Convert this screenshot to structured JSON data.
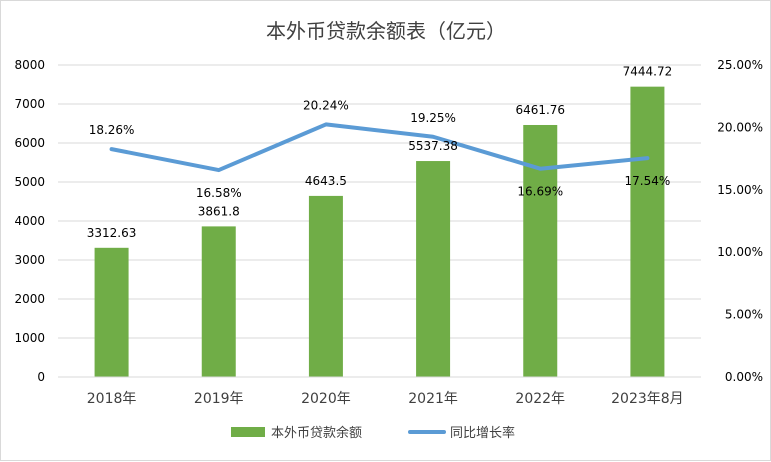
{
  "chart_data": {
    "type": "bar",
    "title": "本外币贷款余额表（亿元）",
    "categories": [
      "2018年",
      "2019年",
      "2020年",
      "2021年",
      "2022年",
      "2023年8月"
    ],
    "series": [
      {
        "name": "本外币贷款余额",
        "type": "bar",
        "axis": "left",
        "values": [
          3312.63,
          3861.8,
          4643.5,
          5537.38,
          6461.76,
          7444.72
        ],
        "labels": [
          "3312.63",
          "3861.8",
          "4643.5",
          "5537.38",
          "6461.76",
          "7444.72"
        ],
        "color": "#70ad47"
      },
      {
        "name": "同比增长率",
        "type": "line",
        "axis": "right",
        "values": [
          18.26,
          16.58,
          20.24,
          19.25,
          16.69,
          17.54
        ],
        "labels": [
          "18.26%",
          "16.58%",
          "20.24%",
          "19.25%",
          "16.69%",
          "17.54%"
        ],
        "color": "#5b9bd5"
      }
    ],
    "y_left": {
      "lim": [
        0,
        8000
      ],
      "ticks": [
        "0",
        "1000",
        "2000",
        "3000",
        "4000",
        "5000",
        "6000",
        "7000",
        "8000"
      ]
    },
    "y_right": {
      "lim": [
        0,
        25
      ],
      "ticks": [
        "0.00%",
        "5.00%",
        "10.00%",
        "15.00%",
        "20.00%",
        "25.00%"
      ]
    },
    "grid": true,
    "legend": "bottom"
  }
}
